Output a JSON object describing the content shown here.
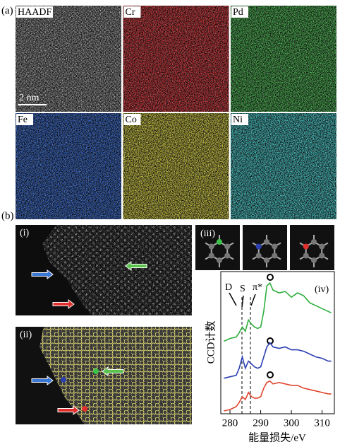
{
  "figure": {
    "panel_a": {
      "label": "(a)",
      "maps": [
        "HAADF",
        "Cr",
        "Pd",
        "Fe",
        "Co",
        "Ni"
      ],
      "scale_bar": "2 nm"
    },
    "panel_b": {
      "label": "(b)",
      "image_i": "(i)",
      "image_ii": "(ii)",
      "image_iii": "(iii)"
    }
  },
  "chart_data": {
    "type": "line",
    "panel_label": "(iv)",
    "annotations": [
      "D",
      "S",
      "π*"
    ],
    "xlabel": "能量损失/eV",
    "ylabel": "CCD计数",
    "x": [
      278,
      280,
      282,
      283,
      284,
      285,
      286,
      287,
      288,
      289,
      290,
      291,
      292,
      293,
      294,
      296,
      298,
      300,
      302,
      304,
      306,
      308,
      310,
      312,
      313
    ],
    "series": [
      {
        "color": "#2fae3e",
        "values": [
          5.1,
          5.3,
          5.4,
          5.7,
          6.1,
          5.8,
          6.6,
          6.3,
          6.1,
          6.0,
          6.1,
          7.2,
          9.0,
          9.2,
          8.7,
          8.5,
          8.6,
          8.2,
          8.5,
          8.3,
          7.8,
          7.6,
          7.4,
          7.2,
          7.1
        ]
      },
      {
        "color": "#2b3fb0",
        "values": [
          2.5,
          2.6,
          2.7,
          3.2,
          4.0,
          3.2,
          3.7,
          3.5,
          3.3,
          3.2,
          3.3,
          4.0,
          4.7,
          5.0,
          4.7,
          4.6,
          4.7,
          4.5,
          4.5,
          4.4,
          4.2,
          4.0,
          3.9,
          3.7,
          3.7
        ]
      },
      {
        "color": "#e0452e",
        "values": [
          0.2,
          0.3,
          0.5,
          0.8,
          1.2,
          1.0,
          1.5,
          1.2,
          1.1,
          1.1,
          1.2,
          1.8,
          2.2,
          2.3,
          2.1,
          2.2,
          2.1,
          2.0,
          2.0,
          1.8,
          1.7,
          1.6,
          1.5,
          1.4,
          1.4
        ]
      }
    ],
    "xlim": [
      277,
      314
    ],
    "xticks": [
      280,
      290,
      300,
      310
    ],
    "ylim": [
      0,
      10
    ]
  }
}
